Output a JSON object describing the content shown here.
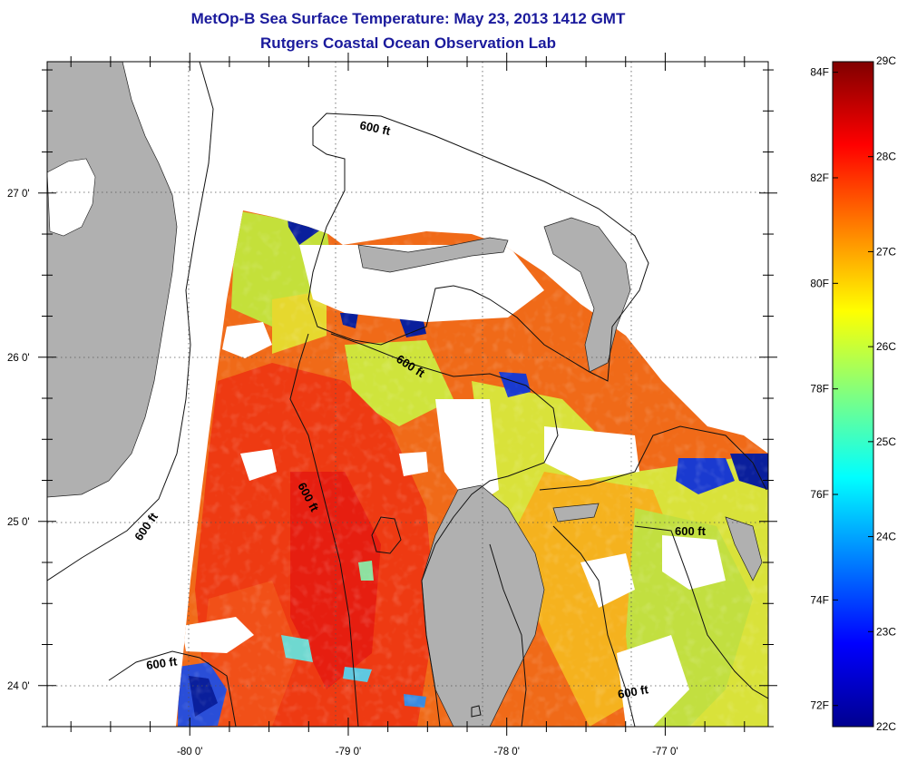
{
  "title": "MetOp-B Sea Surface Temperature:  May 23, 2013 1412 GMT",
  "subtitle": "Rutgers Coastal Ocean Observation Lab",
  "map": {
    "lat_ticks": [
      {
        "value": 27,
        "label": "27 0'"
      },
      {
        "value": 26,
        "label": "26 0'"
      },
      {
        "value": 25,
        "label": "25 0'"
      },
      {
        "value": 24,
        "label": "24 0'"
      }
    ],
    "lon_ticks": [
      {
        "value": -80,
        "label": "-80 0'"
      },
      {
        "value": -79,
        "label": "-79 0'"
      },
      {
        "value": -78,
        "label": "-78 0'"
      },
      {
        "value": -77,
        "label": "-77 0'"
      }
    ],
    "lat_range": [
      23.75,
      27.8
    ],
    "lon_range": [
      -80.9,
      -76.35
    ],
    "grid": true,
    "contour_label": "600 ft"
  },
  "colorbar": {
    "celsius": [
      {
        "value": 29,
        "label": "29C"
      },
      {
        "value": 28,
        "label": "28C"
      },
      {
        "value": 27,
        "label": "27C"
      },
      {
        "value": 26,
        "label": "26C"
      },
      {
        "value": 25,
        "label": "25C"
      },
      {
        "value": 24,
        "label": "24C"
      },
      {
        "value": 23,
        "label": "23C"
      },
      {
        "value": 22,
        "label": "22C"
      }
    ],
    "fahrenheit": [
      {
        "value": 84,
        "label": "84F"
      },
      {
        "value": 82,
        "label": "82F"
      },
      {
        "value": 80,
        "label": "80F"
      },
      {
        "value": 78,
        "label": "78F"
      },
      {
        "value": 76,
        "label": "76F"
      },
      {
        "value": 74,
        "label": "74F"
      },
      {
        "value": 72,
        "label": "72F"
      }
    ],
    "range_c": [
      22,
      29
    ],
    "colormap": "jet"
  },
  "colors": {
    "title": "#1a1a9c",
    "land": "#b0b0b0",
    "warm": "#f04a10",
    "mid": "#f5a21c",
    "cool": "#c8e63a",
    "cold": "#0a1f9c"
  }
}
